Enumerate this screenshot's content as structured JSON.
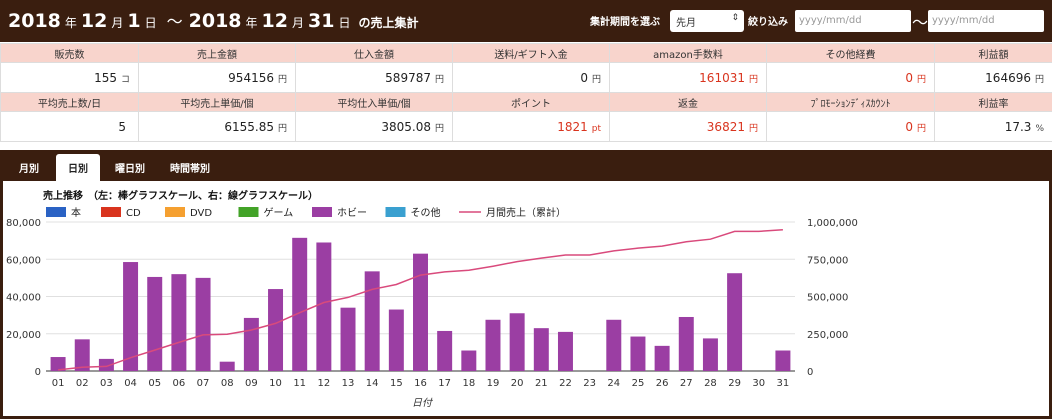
{
  "header": {
    "year1": "2018",
    "year_suffix1": "年",
    "month1": "12",
    "month_suffix1": "月",
    "day1": "1",
    "day_suffix1": "日",
    "tilde": "～",
    "year2": "2018",
    "year_suffix2": "年",
    "month2": "12",
    "month_suffix2": "月",
    "day2": "31",
    "day_suffix2": "日",
    "title_suffix": "の売上集計",
    "period_label": "集計期間を選ぶ",
    "period_value": "先月",
    "filter_label": "絞り込み",
    "date_from_placeholder": "yyyy/mm/dd",
    "date_tilde": "～",
    "date_to_placeholder": "yyyy/mm/dd"
  },
  "summary": {
    "row1_headers": [
      "販売数",
      "売上金額",
      "仕入金額",
      "送料/ギフト入金",
      "amazon手数料",
      "その他経費",
      "利益額"
    ],
    "row1_values": [
      {
        "value": "155",
        "unit": "コ",
        "red": false
      },
      {
        "value": "954156",
        "unit": "円",
        "red": false
      },
      {
        "value": "589787",
        "unit": "円",
        "red": false
      },
      {
        "value": "0",
        "unit": "円",
        "red": false
      },
      {
        "value": "161031",
        "unit": "円",
        "red": true
      },
      {
        "value": "0",
        "unit": "円",
        "red": true
      },
      {
        "value": "164696",
        "unit": "円",
        "red": false
      }
    ],
    "row2_headers": [
      "平均売上数/日",
      "平均売上単価/個",
      "平均仕入単価/個",
      "ポイント",
      "返金",
      "ﾌﾟﾛﾓｰｼｮﾝﾃﾞｨｽｶｳﾝﾄ",
      "利益率"
    ],
    "row2_values": [
      {
        "value": "5",
        "unit": "",
        "red": false
      },
      {
        "value": "6155.85",
        "unit": "円",
        "red": false
      },
      {
        "value": "3805.08",
        "unit": "円",
        "red": false
      },
      {
        "value": "1821",
        "unit": "pt",
        "red": true
      },
      {
        "value": "36821",
        "unit": "円",
        "red": true
      },
      {
        "value": "0",
        "unit": "円",
        "red": true
      },
      {
        "value": "17.3",
        "unit": "%",
        "red": false
      }
    ]
  },
  "tabs": [
    {
      "label": "月別",
      "active": false
    },
    {
      "label": "日別",
      "active": true
    },
    {
      "label": "曜日別",
      "active": false
    },
    {
      "label": "時間帯別",
      "active": false
    }
  ],
  "colors": {
    "header_bg": "#3a1e0f",
    "summary_header_bg": "#f8d4cc",
    "red_value": "#d9341e",
    "bar": "#9b3ea3",
    "line": "#d94a7c"
  },
  "chart_data": {
    "type": "bar",
    "title": "売上推移　（左：棒グラフスケール、右：線グラフスケール）",
    "xlabel": "日付",
    "ylabel": "",
    "legend": [
      {
        "name": "本",
        "color": "#2a62c4"
      },
      {
        "name": "CD",
        "color": "#d9341e"
      },
      {
        "name": "DVD",
        "color": "#f5a030"
      },
      {
        "name": "ゲーム",
        "color": "#43a328"
      },
      {
        "name": "ホビー",
        "color": "#9b3ea3"
      },
      {
        "name": "その他",
        "color": "#3aa0d0"
      },
      {
        "name": "月間売上（累計）",
        "color": "#d94a7c",
        "line": true
      }
    ],
    "categories": [
      "01",
      "02",
      "03",
      "04",
      "05",
      "06",
      "07",
      "08",
      "09",
      "10",
      "11",
      "12",
      "13",
      "14",
      "15",
      "16",
      "17",
      "18",
      "19",
      "20",
      "21",
      "22",
      "23",
      "24",
      "25",
      "26",
      "27",
      "28",
      "29",
      "30",
      "31"
    ],
    "series": [
      {
        "name": "ホビー",
        "values": [
          7500,
          17000,
          6500,
          58500,
          50500,
          52000,
          50000,
          5000,
          28500,
          44000,
          71500,
          69000,
          34000,
          53500,
          33000,
          63000,
          21500,
          11000,
          27500,
          31000,
          23000,
          21000,
          0,
          27500,
          18500,
          13500,
          29000,
          17500,
          52500,
          0,
          11000
        ]
      },
      {
        "name": "月間売上（累計）",
        "values": [
          7500,
          24500,
          31000,
          89500,
          140000,
          192000,
          242000,
          247000,
          275500,
          319500,
          391000,
          460000,
          494000,
          547500,
          580500,
          643500,
          665000,
          676000,
          703500,
          734500,
          757500,
          778500,
          778500,
          806000,
          824500,
          838000,
          867000,
          884500,
          937000,
          937000,
          948000
        ]
      }
    ],
    "y_ticks_left": [
      "0",
      "20,000",
      "40,000",
      "60,000",
      "80,000"
    ],
    "y_ticks_right": [
      "0",
      "250,000",
      "500,000",
      "750,000",
      "1,000,000"
    ],
    "ylim": [
      0,
      80000
    ],
    "y2lim": [
      0,
      1000000
    ],
    "grid": true,
    "legend_position": "top-left"
  }
}
